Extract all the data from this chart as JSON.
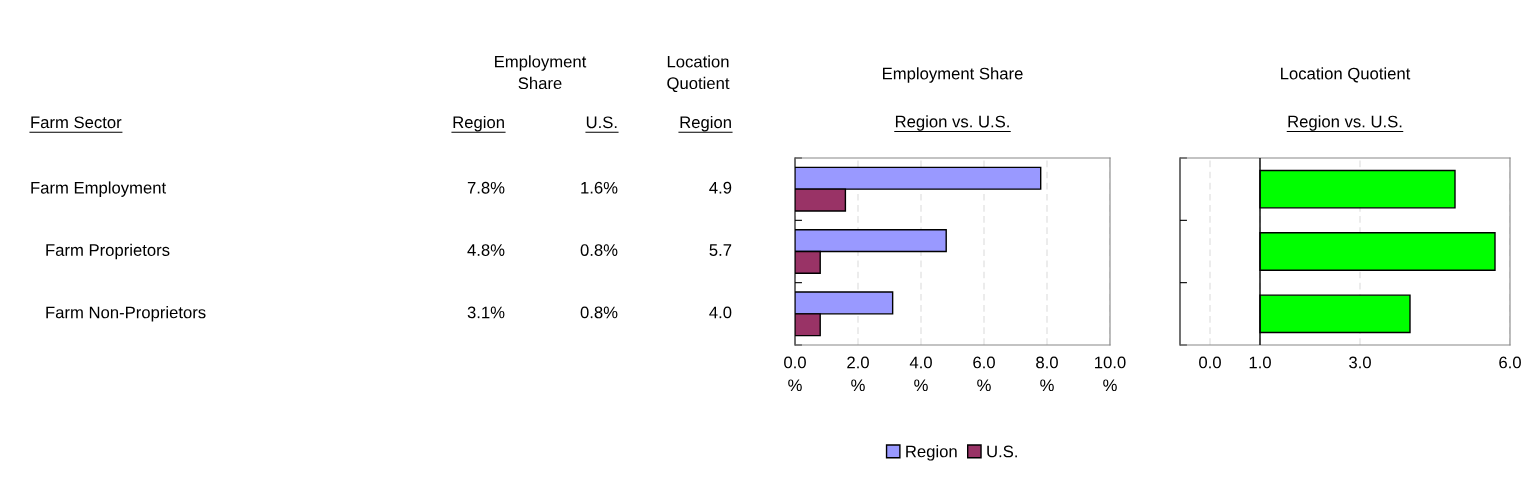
{
  "chart_data": [
    {
      "type": "other",
      "xlabel": "Farm Sector",
      "categories": [
        "Farm Employment",
        "Farm Proprietors",
        "Farm Non-Proprietors"
      ],
      "annotations": [
        "Employment\nShare",
        "Location\nQuotient"
      ],
      "series": [
        {
          "name": "Region",
          "values": [
            7.8,
            4.8,
            3.1
          ],
          "value_labels": [
            "7.8%",
            "4.8%",
            "3.1%"
          ]
        },
        {
          "name": "U.S.",
          "values": [
            1.6,
            0.8,
            0.8
          ],
          "value_labels": [
            "1.6%",
            "0.8%",
            "0.8%"
          ]
        },
        {
          "name": "Region",
          "values": [
            4.9,
            5.7,
            4.0
          ],
          "value_labels": [
            "4.9",
            "5.7",
            "4.0"
          ]
        }
      ]
    },
    {
      "type": "bar",
      "orientation": "horizontal",
      "title": "Employment Share",
      "subtitle": "Region vs. U.S.",
      "categories": [
        null,
        null,
        null
      ],
      "series": [
        {
          "name": "Region",
          "color": "#9999ff",
          "values": [
            7.8,
            4.8,
            3.1
          ]
        },
        {
          "name": "U.S.",
          "color": "#993366",
          "values": [
            1.6,
            0.8,
            0.8
          ]
        }
      ],
      "xlim": [
        0,
        10
      ],
      "xticks": [
        {
          "value": 0,
          "label": "0.0\n%"
        },
        {
          "value": 2,
          "label": "2.0\n%"
        },
        {
          "value": 4,
          "label": "4.0\n%"
        },
        {
          "value": 6,
          "label": "6.0\n%"
        },
        {
          "value": 8,
          "label": "8.0\n%"
        },
        {
          "value": 10,
          "label": "10.0\n%"
        }
      ],
      "grid": "x",
      "legend": "bottom",
      "tick_labels": "x"
    },
    {
      "type": "bar",
      "orientation": "horizontal",
      "title": "Location Quotient",
      "subtitle": "Region vs. U.S.",
      "categories": [
        null,
        null,
        null
      ],
      "series": [
        {
          "color": "#00ff00",
          "values": [
            3.9,
            4.7,
            3.0
          ],
          "base": [
            1,
            1,
            1
          ]
        }
      ],
      "xlim": [
        -0.6,
        6.0
      ],
      "xticks": [
        {
          "value": 0,
          "label": "0.0"
        },
        {
          "value": 1,
          "label": "1.0"
        },
        {
          "value": 3,
          "label": "3.0"
        },
        {
          "value": 6,
          "label": "6.0"
        }
      ],
      "ref_lines": [
        {
          "axis": "x",
          "value": 1,
          "color": "#000000"
        }
      ],
      "grid": "x",
      "tick_labels": "x"
    }
  ]
}
